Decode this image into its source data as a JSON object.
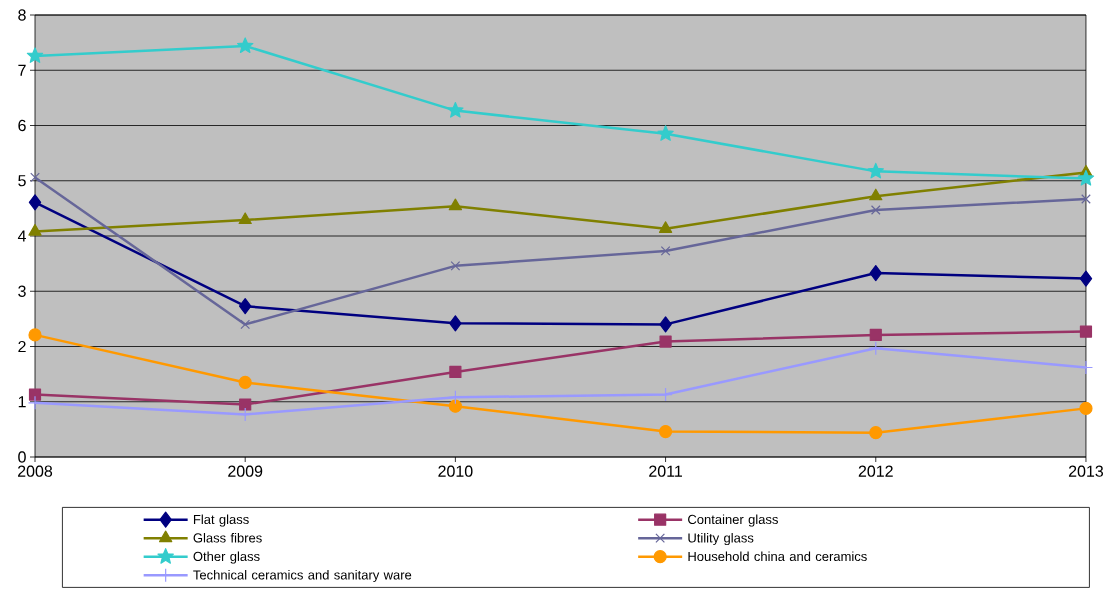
{
  "chart_data": {
    "type": "line",
    "categories": [
      "2008",
      "2009",
      "2010",
      "2011",
      "2012",
      "2013"
    ],
    "series": [
      {
        "name": "Flat glass",
        "color": "#000080",
        "marker": "diamond",
        "values": [
          4.61,
          2.73,
          2.42,
          2.4,
          3.33,
          3.23
        ]
      },
      {
        "name": "Container glass",
        "color": "#993366",
        "marker": "square",
        "values": [
          1.13,
          0.95,
          1.54,
          2.09,
          2.21,
          2.27
        ]
      },
      {
        "name": "Glass fibres",
        "color": "#808000",
        "marker": "triangle",
        "values": [
          4.08,
          4.29,
          4.54,
          4.13,
          4.72,
          5.15
        ]
      },
      {
        "name": "Utility glass",
        "color": "#666699",
        "marker": "cross",
        "values": [
          5.06,
          2.4,
          3.46,
          3.73,
          4.47,
          4.67
        ]
      },
      {
        "name": "Other glass",
        "color": "#33cccc",
        "marker": "star",
        "values": [
          7.26,
          7.44,
          6.27,
          5.85,
          5.17,
          5.04
        ]
      },
      {
        "name": "Household china and ceramics",
        "color": "#ff9900",
        "marker": "circle",
        "values": [
          2.21,
          1.35,
          0.92,
          0.46,
          0.44,
          0.88
        ]
      },
      {
        "name": "Technical ceramics and sanitary ware",
        "color": "#9999ff",
        "marker": "plus",
        "values": [
          0.98,
          0.77,
          1.08,
          1.13,
          1.97,
          1.62
        ]
      }
    ],
    "ylim": [
      0,
      8
    ],
    "yticks": [
      0,
      1,
      2,
      3,
      4,
      5,
      6,
      7,
      8
    ],
    "grid": "y",
    "legend": "bottom",
    "line_style": "solid"
  }
}
